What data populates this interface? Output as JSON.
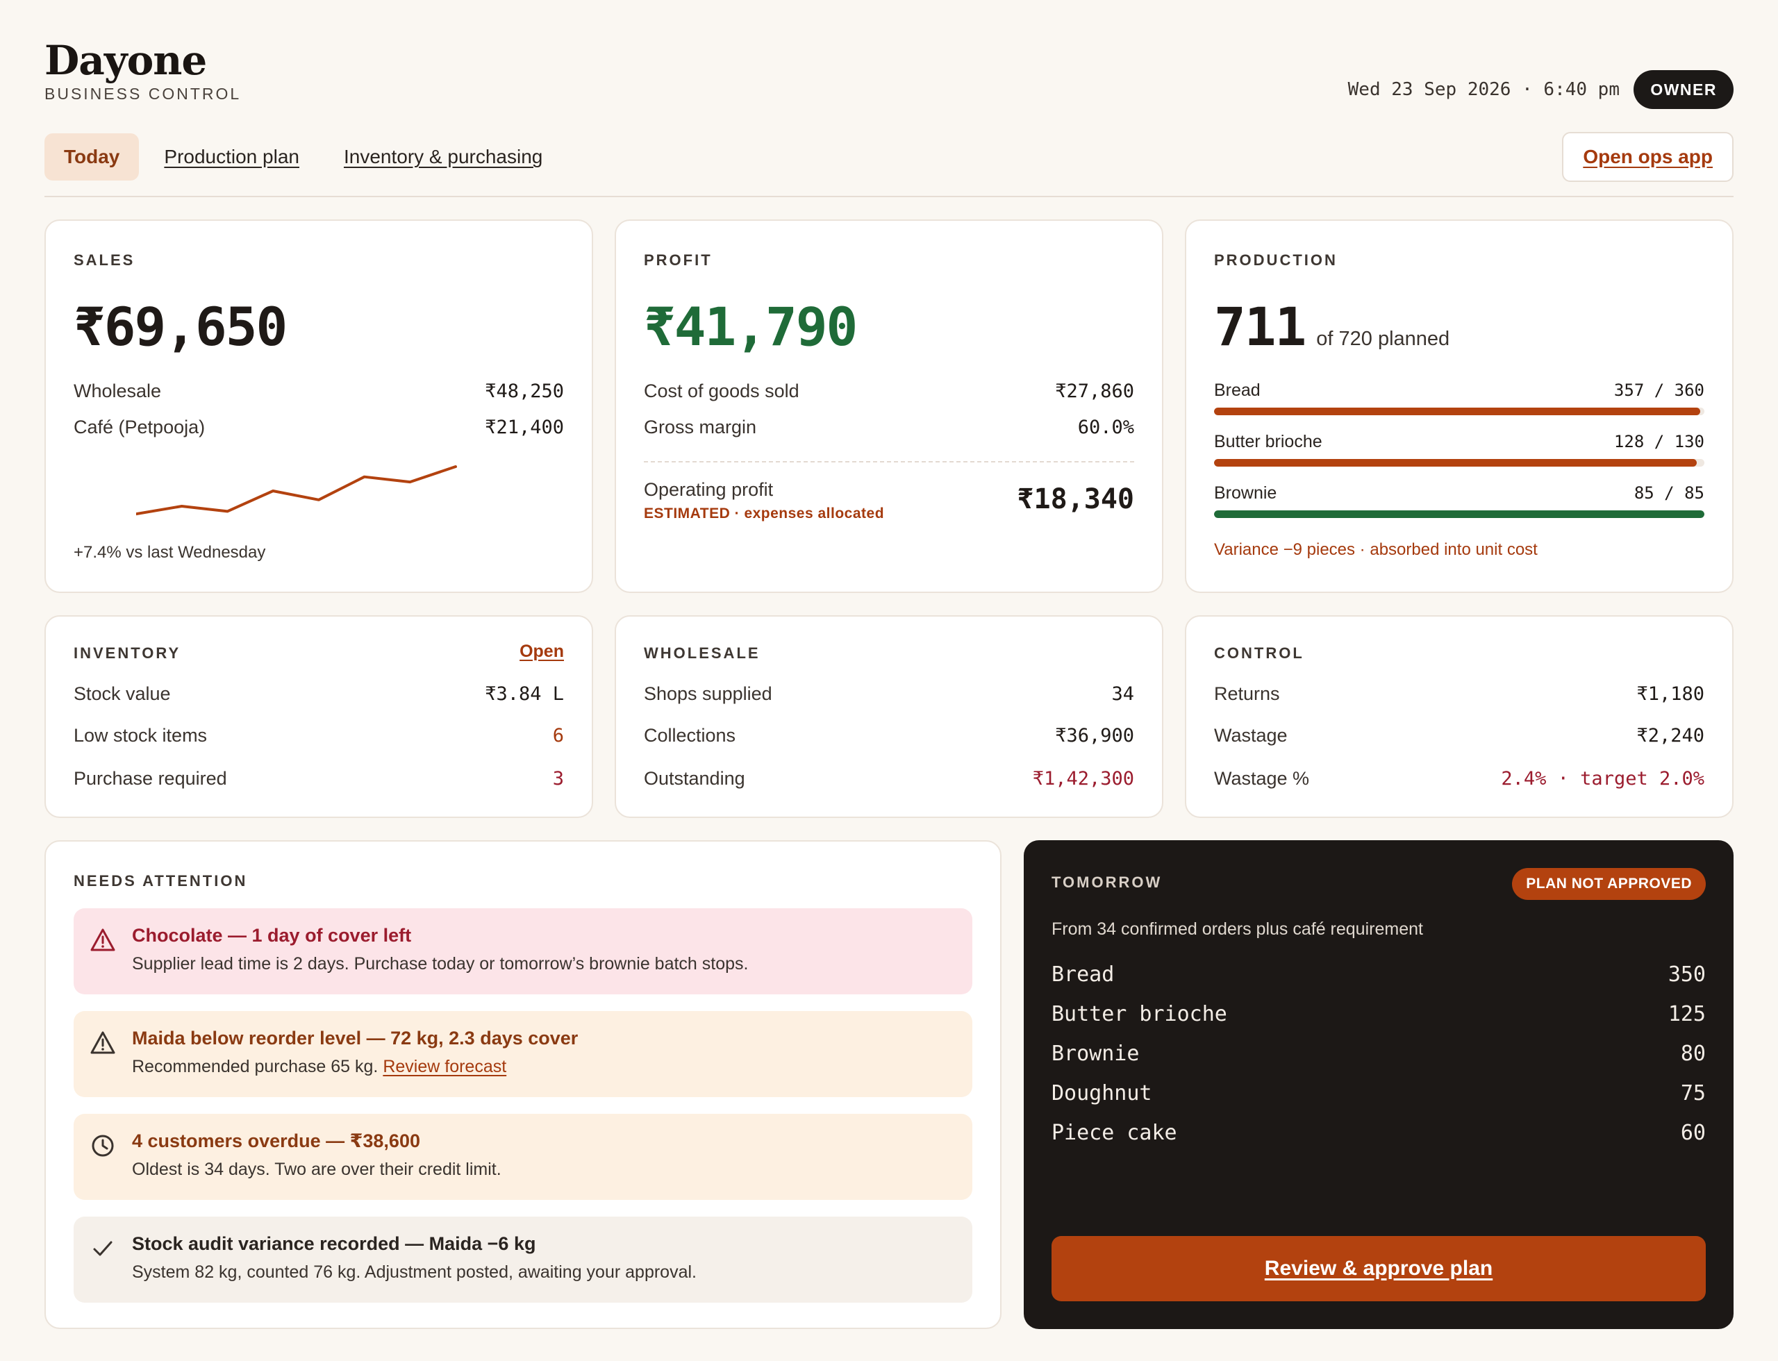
{
  "brand": {
    "name": "Dayone",
    "subtitle": "BUSINESS CONTROL"
  },
  "header": {
    "datetime": "Wed 23 Sep 2026 · 6:40 pm",
    "role_badge": "OWNER"
  },
  "tabs": [
    {
      "label": "Today",
      "active": true
    },
    {
      "label": "Production plan",
      "active": false
    },
    {
      "label": "Inventory & purchasing",
      "active": false
    }
  ],
  "ops_button": "Open ops app",
  "sales": {
    "label": "SALES",
    "total": "₹69,650",
    "rows": [
      {
        "label": "Wholesale",
        "value": "₹48,250"
      },
      {
        "label": "Café (Petpooja)",
        "value": "₹21,400"
      }
    ],
    "trend_note": "+7.4% vs last Wednesday",
    "sparkline": [
      0.26,
      0.38,
      0.3,
      0.62,
      0.48,
      0.84,
      0.76,
      1.0
    ],
    "sparkline_color": "#b3420f"
  },
  "profit": {
    "label": "PROFIT",
    "total": "₹41,790",
    "total_color": "#1f6b38",
    "rows": [
      {
        "label": "Cost of goods sold",
        "value": "₹27,860"
      },
      {
        "label": "Gross margin",
        "value": "60.0%"
      }
    ],
    "operating_label": "Operating profit",
    "operating_note": "ESTIMATED · expenses allocated",
    "operating_value": "₹18,340"
  },
  "production": {
    "label": "PRODUCTION",
    "produced": "711",
    "planned_text": "of 720 planned",
    "items": [
      {
        "name": "Bread",
        "done": "357",
        "plan": "360",
        "fraction": 0.992
      },
      {
        "name": "Butter brioche",
        "done": "128",
        "plan": "130",
        "fraction": 0.985
      },
      {
        "name": "Brownie",
        "done": "85",
        "plan": "85",
        "fraction": 1.0
      }
    ],
    "variance_note": "Variance −9 pieces · absorbed into unit cost"
  },
  "inventory": {
    "label": "INVENTORY",
    "open_link": "Open",
    "rows": [
      {
        "label": "Stock value",
        "value": "₹3.84 L"
      },
      {
        "label": "Low stock items",
        "value": "6"
      },
      {
        "label": "Purchase required",
        "value": "3"
      }
    ]
  },
  "wholesale": {
    "label": "WHOLESALE",
    "rows": [
      {
        "label": "Shops supplied",
        "value": "34"
      },
      {
        "label": "Collections",
        "value": "₹36,900"
      },
      {
        "label": "Outstanding",
        "value": "₹1,42,300"
      }
    ]
  },
  "control": {
    "label": "CONTROL",
    "rows": [
      {
        "label": "Returns",
        "value": "₹1,180"
      },
      {
        "label": "Wastage",
        "value": "₹2,240"
      },
      {
        "label": "Wastage %",
        "value": "2.4% · target 2.0%"
      }
    ]
  },
  "attention": {
    "label": "NEEDS ATTENTION",
    "alerts": [
      {
        "icon": "warning-triangle-icon",
        "title": "Chocolate — 1 day of cover left",
        "body": "Supplier lead time is 2 days. Purchase today or tomorrow’s brownie batch stops.",
        "bg": "#fce4e8",
        "title_color": "#9b1c2e"
      },
      {
        "icon": "warning-triangle-icon",
        "title": "Maida below reorder level — 72 kg, 2.3 days cover",
        "body": "Recommended purchase 65 kg.",
        "link": "Review forecast",
        "bg": "#fdf0e1",
        "title_color": "#8a3a12"
      },
      {
        "icon": "clock-icon",
        "title": "4 customers overdue — ₹38,600",
        "body": "Oldest is 34 days. Two are over their credit limit.",
        "bg": "#fdf0e1",
        "title_color": "#8a3a12"
      },
      {
        "icon": "check-icon",
        "title": "Stock audit variance recorded — Maida −6 kg",
        "body": "System 82 kg, counted 76 kg. Adjustment posted, awaiting your approval.",
        "bg": "#f5f0ea",
        "title_color": "#2a2420"
      }
    ]
  },
  "tomorrow": {
    "label": "TOMORROW",
    "badge": "PLAN NOT APPROVED",
    "subtitle": "From 34 confirmed orders plus café requirement",
    "items": [
      {
        "name": "Bread",
        "qty": "350"
      },
      {
        "name": "Butter brioche",
        "qty": "125"
      },
      {
        "name": "Brownie",
        "qty": "80"
      },
      {
        "name": "Doughnut",
        "qty": "75"
      },
      {
        "name": "Piece cake",
        "qty": "60"
      }
    ],
    "button": "Review & approve plan"
  }
}
